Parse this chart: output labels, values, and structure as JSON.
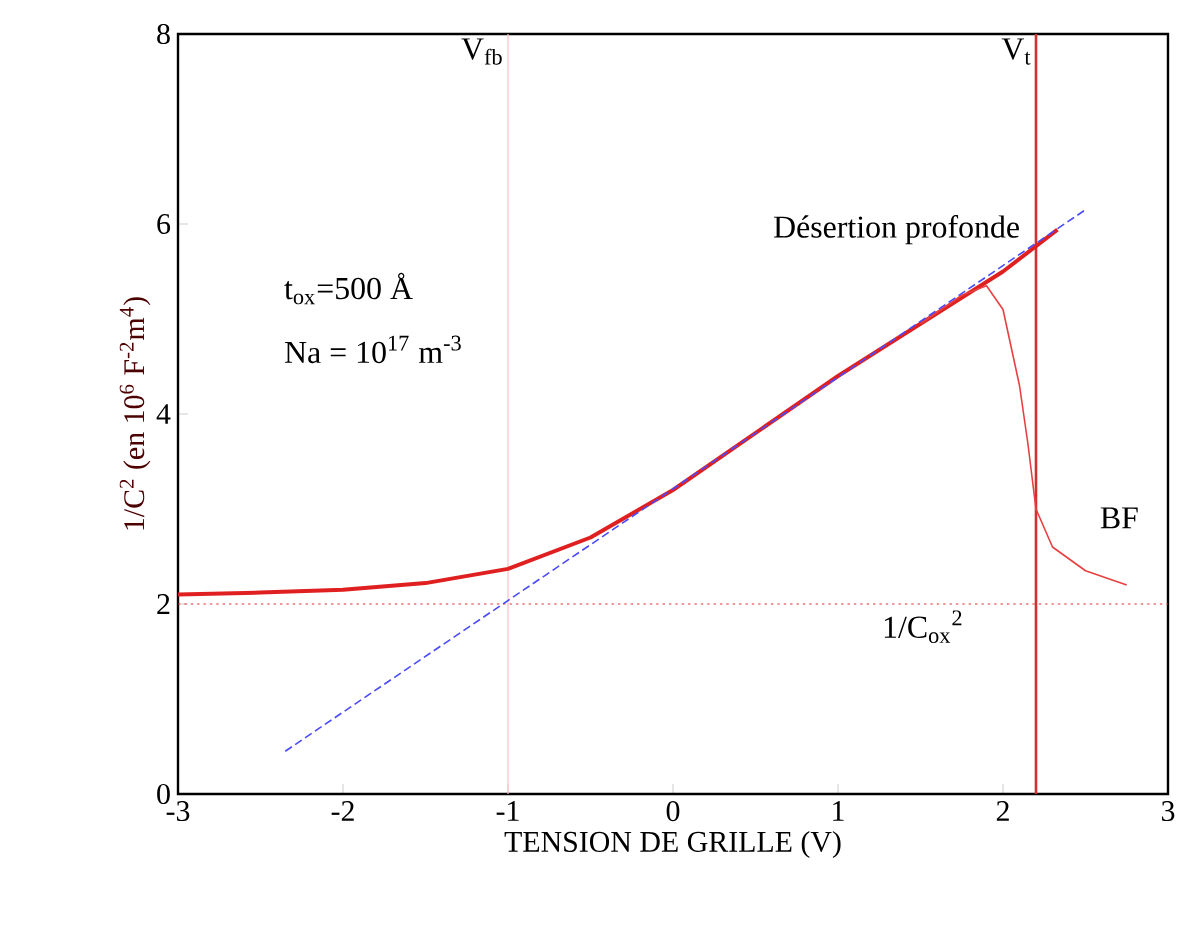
{
  "chart_data": {
    "type": "line",
    "xlabel": "TENSION DE GRILLE (V)",
    "ylabel": "1/C$^{2}$ (en 10$^{6}$ F$^{-2}$m$^{4}$)",
    "xlim": [
      -3,
      3
    ],
    "ylim": [
      0,
      8
    ],
    "xticks": [
      -3,
      -2,
      -1,
      0,
      1,
      2,
      3
    ],
    "yticks": [
      0,
      2,
      4,
      6,
      8
    ],
    "series": [
      {
        "name": "Désertion profonde",
        "color": "#e02020",
        "x": [
          -3,
          -2.5,
          -2,
          -1.5,
          -1,
          -0.5,
          0,
          0.5,
          1,
          1.5,
          2,
          2.33
        ],
        "values": [
          2.1,
          2.12,
          2.15,
          2.22,
          2.37,
          2.7,
          3.2,
          3.8,
          4.4,
          4.95,
          5.5,
          5.94
        ]
      },
      {
        "name": "BF",
        "color": "#e84040",
        "x": [
          1.5,
          1.75,
          1.9,
          2.0,
          2.1,
          2.15,
          2.2,
          2.3,
          2.5,
          2.75
        ],
        "values": [
          4.95,
          5.25,
          5.35,
          5.1,
          4.3,
          3.7,
          3.0,
          2.6,
          2.35,
          2.2
        ]
      },
      {
        "color": "#4a4aff",
        "line_style": "dashed",
        "x": [
          -2.35,
          2.5
        ],
        "values": [
          0.45,
          6.15
        ]
      }
    ],
    "ref_lines": [
      {
        "axis": "x",
        "value": -1,
        "label": "V$_{fb}$",
        "color": "#ffc0c8"
      },
      {
        "axis": "x",
        "value": 2.2,
        "label": "V$_{t}$",
        "color": "#d03030"
      },
      {
        "axis": "y",
        "value": 2,
        "label": "1/C$_{ox}$$^{2}$",
        "color": "#e03030",
        "line_style": "dotted"
      }
    ],
    "annotations": [
      "t$_{ox}$=500 Å",
      "Na = 10$^{17}$ m$^{-3}$"
    ]
  }
}
